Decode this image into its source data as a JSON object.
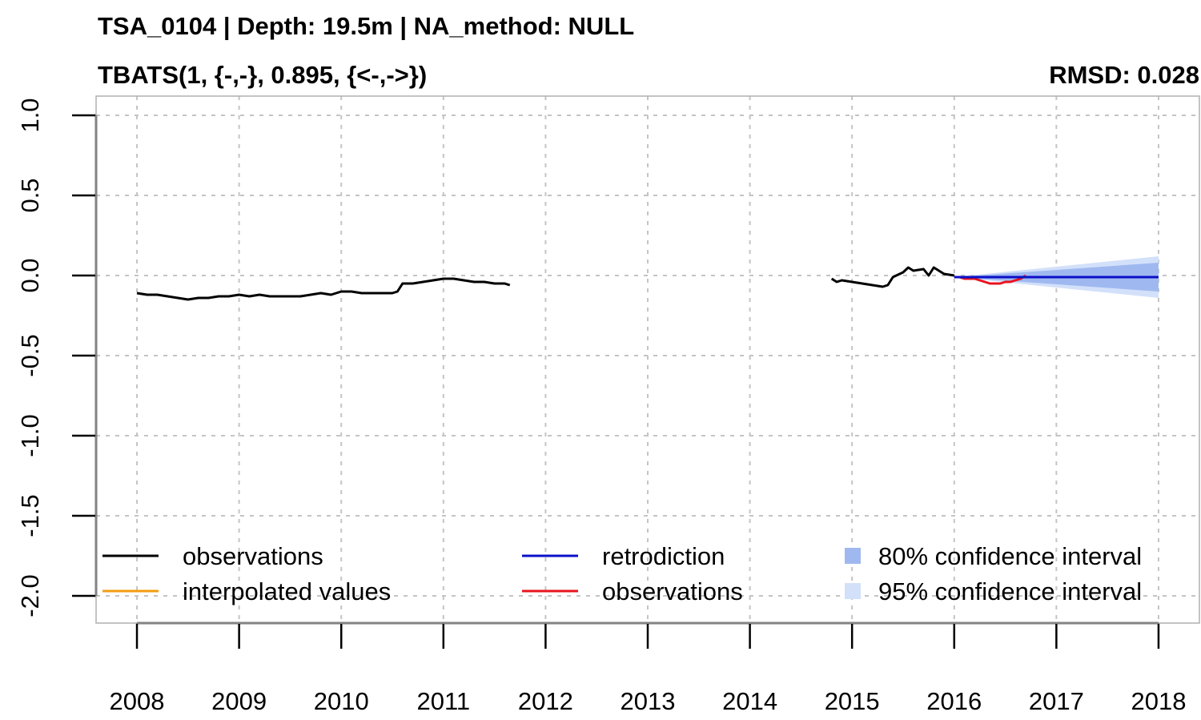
{
  "header": {
    "title": "TSA_0104 | Depth: 19.5m | NA_method: NULL",
    "model": "TBATS(1, {-,-}, 0.895, {<-,->})",
    "rmsd": "RMSD: 0.028"
  },
  "legend": [
    {
      "label": "observations",
      "color": "#000000",
      "kind": "line"
    },
    {
      "label": "interpolated values",
      "color": "#f39c12",
      "kind": "line"
    },
    {
      "label": "retrodiction",
      "color": "#0b10c8",
      "kind": "line"
    },
    {
      "label": "observations",
      "color": "#e8141e",
      "kind": "line"
    },
    {
      "label": "80% confidence interval",
      "color": "#9fb9f0",
      "kind": "box"
    },
    {
      "label": "95% confidence interval",
      "color": "#d3e0fa",
      "kind": "box"
    }
  ],
  "chart_data": {
    "type": "line",
    "title": "TSA_0104 | Depth: 19.5m | NA_method: NULL",
    "subtitle": "TBATS(1, {-,-}, 0.895, {<-,->})",
    "annotation": "RMSD: 0.028",
    "xlabel": "",
    "ylabel": "",
    "xlim": [
      2007.6,
      2018.4
    ],
    "ylim": [
      -2.17,
      1.12
    ],
    "x_ticks": [
      2008,
      2009,
      2010,
      2011,
      2012,
      2013,
      2014,
      2015,
      2016,
      2017,
      2018
    ],
    "x_tick_labels": [
      "2008",
      "2009",
      "2010",
      "2011",
      "2012",
      "2013",
      "2014",
      "2015",
      "2016",
      "2017",
      "2018"
    ],
    "y_ticks": [
      1.0,
      0.5,
      0.0,
      -0.5,
      -1.0,
      -1.5,
      -2.0
    ],
    "y_tick_labels": [
      "1.0",
      "0.5",
      "0.0",
      "-0.5",
      "-1.0",
      "-1.5",
      "-2.0"
    ],
    "grid": true,
    "legend_position": "bottom",
    "series": [
      {
        "name": "observations",
        "color": "#000000",
        "x": [
          2008.0,
          2008.1,
          2008.2,
          2008.3,
          2008.4,
          2008.5,
          2008.6,
          2008.7,
          2008.8,
          2008.9,
          2009.0,
          2009.1,
          2009.2,
          2009.3,
          2009.4,
          2009.5,
          2009.6,
          2009.7,
          2009.8,
          2009.9,
          2010.0,
          2010.1,
          2010.2,
          2010.3,
          2010.4,
          2010.5,
          2010.55,
          2010.6,
          2010.7,
          2010.8,
          2010.9,
          2011.0,
          2011.1,
          2011.2,
          2011.3,
          2011.4,
          2011.5,
          2011.6,
          2011.65
        ],
        "y": [
          -0.11,
          -0.12,
          -0.12,
          -0.13,
          -0.14,
          -0.15,
          -0.14,
          -0.14,
          -0.13,
          -0.13,
          -0.12,
          -0.13,
          -0.12,
          -0.13,
          -0.13,
          -0.13,
          -0.13,
          -0.12,
          -0.11,
          -0.12,
          -0.1,
          -0.1,
          -0.11,
          -0.11,
          -0.11,
          -0.11,
          -0.1,
          -0.05,
          -0.05,
          -0.04,
          -0.03,
          -0.02,
          -0.02,
          -0.03,
          -0.04,
          -0.04,
          -0.05,
          -0.05,
          -0.06
        ]
      },
      {
        "name": "observations",
        "color": "#000000",
        "x": [
          2014.8,
          2014.85,
          2014.9,
          2015.0,
          2015.1,
          2015.2,
          2015.3,
          2015.35,
          2015.4,
          2015.5,
          2015.55,
          2015.6,
          2015.7,
          2015.75,
          2015.8,
          2015.9,
          2016.0
        ],
        "y": [
          -0.02,
          -0.04,
          -0.03,
          -0.04,
          -0.05,
          -0.06,
          -0.07,
          -0.06,
          -0.01,
          0.02,
          0.05,
          0.03,
          0.04,
          0.0,
          0.05,
          0.01,
          0.0
        ]
      },
      {
        "name": "observations",
        "color": "#e8141e",
        "x": [
          2016.0,
          2016.05,
          2016.1,
          2016.15,
          2016.2,
          2016.25,
          2016.3,
          2016.35,
          2016.4,
          2016.45,
          2016.5,
          2016.55,
          2016.6,
          2016.65,
          2016.7
        ],
        "y": [
          -0.01,
          -0.01,
          -0.02,
          -0.02,
          -0.02,
          -0.03,
          -0.04,
          -0.05,
          -0.05,
          -0.05,
          -0.04,
          -0.04,
          -0.03,
          -0.02,
          0.0
        ]
      },
      {
        "name": "retrodiction",
        "color": "#0b10c8",
        "x": [
          2016.0,
          2018.0
        ],
        "y": [
          -0.01,
          -0.01
        ]
      }
    ],
    "bands": [
      {
        "name": "95% confidence interval",
        "color": "#d3e0fa",
        "x": [
          2016.0,
          2018.0
        ],
        "lower": [
          -0.01,
          -0.14
        ],
        "upper": [
          -0.01,
          0.12
        ]
      },
      {
        "name": "80% confidence interval",
        "color": "#9fb9f0",
        "x": [
          2016.0,
          2018.0
        ],
        "lower": [
          -0.01,
          -0.1
        ],
        "upper": [
          -0.01,
          0.08
        ]
      }
    ]
  }
}
